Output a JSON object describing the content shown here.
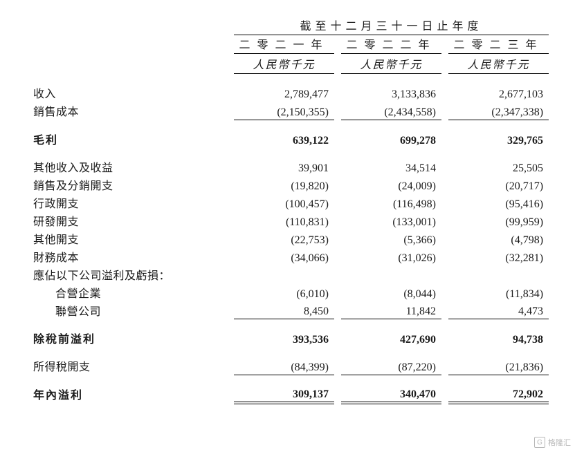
{
  "table": {
    "super_header": "截至十二月三十一日止年度",
    "years": [
      "二零二一年",
      "二零二二年",
      "二零二三年"
    ],
    "unit": "人民幣千元",
    "rows": {
      "revenue": {
        "label": "收入",
        "vals": [
          "2,789,477",
          "3,133,836",
          "2,677,103"
        ]
      },
      "cost_of_sales": {
        "label": "銷售成本",
        "vals": [
          "(2,150,355)",
          "(2,434,558)",
          "(2,347,338)"
        ]
      },
      "gross_profit": {
        "label": "毛利",
        "vals": [
          "639,122",
          "699,278",
          "329,765"
        ]
      },
      "other_income": {
        "label": "其他收入及收益",
        "vals": [
          "39,901",
          "34,514",
          "25,505"
        ]
      },
      "selling_exp": {
        "label": "銷售及分銷開支",
        "vals": [
          "(19,820)",
          "(24,009)",
          "(20,717)"
        ]
      },
      "admin_exp": {
        "label": "行政開支",
        "vals": [
          "(100,457)",
          "(116,498)",
          "(95,416)"
        ]
      },
      "rd_exp": {
        "label": "研發開支",
        "vals": [
          "(110,831)",
          "(133,001)",
          "(99,959)"
        ]
      },
      "other_exp": {
        "label": "其他開支",
        "vals": [
          "(22,753)",
          "(5,366)",
          "(4,798)"
        ]
      },
      "finance_cost": {
        "label": "財務成本",
        "vals": [
          "(34,066)",
          "(31,026)",
          "(32,281)"
        ]
      },
      "share_header": {
        "label": "應佔以下公司溢利及虧損："
      },
      "jv": {
        "label": "合營企業",
        "vals": [
          "(6,010)",
          "(8,044)",
          "(11,834)"
        ]
      },
      "assoc": {
        "label": "聯營公司",
        "vals": [
          "8,450",
          "11,842",
          "4,473"
        ]
      },
      "pbt": {
        "label": "除稅前溢利",
        "vals": [
          "393,536",
          "427,690",
          "94,738"
        ]
      },
      "tax": {
        "label": "所得稅開支",
        "vals": [
          "(84,399)",
          "(87,220)",
          "(21,836)"
        ]
      },
      "profit": {
        "label": "年內溢利",
        "vals": [
          "309,137",
          "340,470",
          "72,902"
        ]
      }
    }
  },
  "watermark": {
    "logo": "G",
    "text": "格隆汇"
  }
}
